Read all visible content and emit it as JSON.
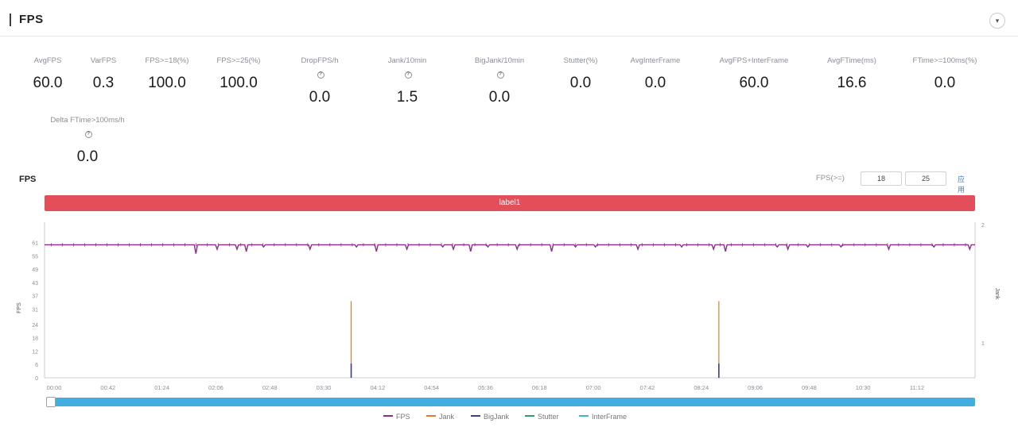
{
  "header": {
    "title": "FPS",
    "collapse_icon": "chevron-down-icon"
  },
  "stats": [
    {
      "label": "AvgFPS",
      "value": "60.0",
      "info": false
    },
    {
      "label": "VarFPS",
      "value": "0.3",
      "info": false
    },
    {
      "label": "FPS>=18(%)",
      "value": "100.0",
      "info": false
    },
    {
      "label": "FPS>=25(%)",
      "value": "100.0",
      "info": false
    },
    {
      "label": "DropFPS/h",
      "value": "0.0",
      "info": true
    },
    {
      "label": "Jank/10min",
      "value": "1.5",
      "info": true
    },
    {
      "label": "BigJank/10min",
      "value": "0.0",
      "info": true
    },
    {
      "label": "Stutter(%)",
      "value": "0.0",
      "info": false
    },
    {
      "label": "AvgInterFrame",
      "value": "0.0",
      "info": false
    },
    {
      "label": "AvgFPS+InterFrame",
      "value": "60.0",
      "info": false
    },
    {
      "label": "AvgFTime(ms)",
      "value": "16.6",
      "info": false
    },
    {
      "label": "FTime>=100ms(%)",
      "value": "0.0",
      "info": false
    },
    {
      "label": "Delta FTime>100ms/h",
      "value": "0.0",
      "info": true
    }
  ],
  "chart_title": "FPS",
  "fps_threshold": {
    "label": "FPS(>=)",
    "value1": "18",
    "value2": "25",
    "apply_label": "应用"
  },
  "scene_label": "label1",
  "legend": [
    {
      "name": "FPS",
      "color": "#8e2b8a"
    },
    {
      "name": "Jank",
      "color": "#e07a2e"
    },
    {
      "name": "BigJank",
      "color": "#3a3f9a"
    },
    {
      "name": "Stutter",
      "color": "#2e9e6a"
    },
    {
      "name": "InterFrame",
      "color": "#3fb7c9"
    }
  ],
  "chart_data": {
    "type": "line",
    "title": "FPS",
    "ylabel": "FPS",
    "y2label": "Jank",
    "ylim": [
      0,
      63
    ],
    "y_ticks": [
      0,
      6,
      12,
      18,
      24,
      31,
      37,
      43,
      49,
      55,
      61
    ],
    "y2lim": [
      0,
      2
    ],
    "y2_ticks": [
      1,
      2
    ],
    "x_ticks": [
      "00:00",
      "00:42",
      "01:24",
      "02:06",
      "02:48",
      "03:30",
      "04:12",
      "04:54",
      "05:36",
      "06:18",
      "07:00",
      "07:42",
      "08:24",
      "09:06",
      "09:48",
      "10:30",
      "11:12"
    ],
    "x_range_seconds": [
      0,
      701
    ],
    "grid": false,
    "series": [
      {
        "name": "FPS",
        "baseline": 60,
        "dips": [
          [
            114,
            56
          ],
          [
            130,
            58
          ],
          [
            145,
            58
          ],
          [
            152,
            57
          ],
          [
            165,
            59
          ],
          [
            200,
            58
          ],
          [
            235,
            59
          ],
          [
            250,
            57
          ],
          [
            273,
            58
          ],
          [
            300,
            59
          ],
          [
            308,
            58
          ],
          [
            321,
            57
          ],
          [
            334,
            59
          ],
          [
            356,
            58
          ],
          [
            382,
            57
          ],
          [
            400,
            59
          ],
          [
            415,
            59
          ],
          [
            447,
            58
          ],
          [
            480,
            59
          ],
          [
            504,
            58
          ],
          [
            513,
            57
          ],
          [
            552,
            59
          ],
          [
            560,
            58
          ],
          [
            575,
            59
          ],
          [
            600,
            59
          ],
          [
            636,
            58
          ],
          [
            670,
            59
          ],
          [
            697,
            58
          ]
        ]
      },
      {
        "name": "Jank",
        "points": [
          [
            231,
            1
          ],
          [
            508,
            1
          ]
        ]
      },
      {
        "name": "BigJank",
        "points": [
          [
            231,
            0.2
          ],
          [
            508,
            0.2
          ]
        ]
      }
    ]
  }
}
